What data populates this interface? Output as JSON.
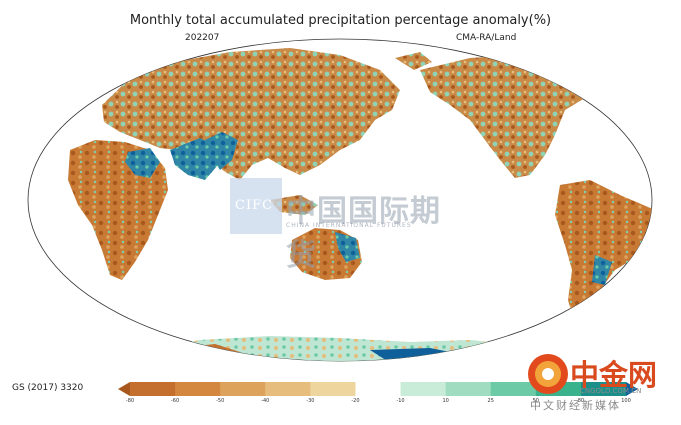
{
  "title": "Monthly total accumulated precipitation percentage anomaly(%)",
  "date_label": "202207",
  "source_label": "CMA-RA/Land",
  "colorbar": {
    "label": "GS (2017) 3320",
    "ticks": [
      "-80",
      "-60",
      "-50",
      "-40",
      "-30",
      "-20",
      "-10",
      "10",
      "25",
      "50",
      "80",
      "100"
    ],
    "colors": [
      "#a8581c",
      "#c46f2e",
      "#d4873f",
      "#dda35c",
      "#e6bd7c",
      "#eed59e",
      "#ffffff",
      "#c8ecd8",
      "#9fdcc0",
      "#6ccaa6",
      "#3ab38d",
      "#1b8f8a",
      "#0e5f9a"
    ]
  },
  "watermark": {
    "latin": "CIFC",
    "chinese": "中国国际期货",
    "english": "CHINA INTERNATIONAL FUTURES"
  },
  "logo": {
    "name": "中金网",
    "url": "CNGOLD.COM.CN",
    "tagline": "中文财经新媒体"
  },
  "legend_colors": {
    "dry": "#c06a28",
    "wet_mid": "#7dd0b0",
    "wet_high": "#0f5d9e",
    "ocean": "#ffffff"
  }
}
